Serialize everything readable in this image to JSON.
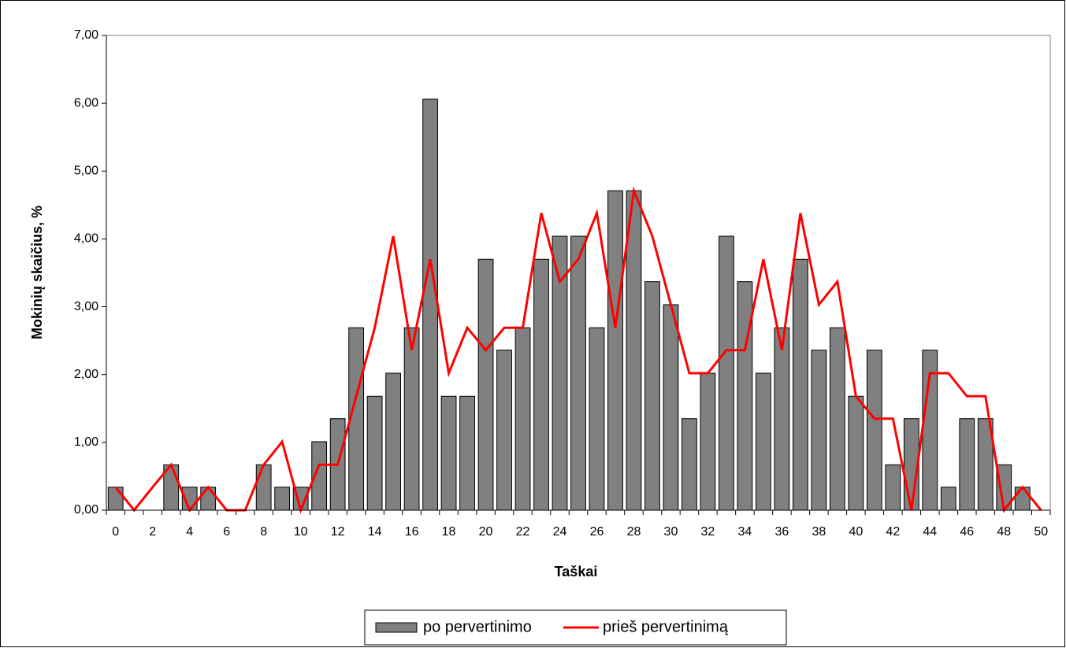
{
  "chart_data": {
    "type": "bar",
    "x_label": "Taškai",
    "y_label": "Mokinių skaičius, %",
    "categories": [
      "0",
      null,
      "2",
      null,
      "4",
      null,
      "6",
      null,
      "8",
      null,
      "10",
      null,
      "12",
      null,
      "14",
      null,
      "16",
      null,
      "18",
      null,
      "20",
      null,
      "22",
      null,
      "24",
      null,
      "26",
      null,
      "28",
      null,
      "30",
      null,
      "32",
      null,
      "34",
      null,
      "36",
      null,
      "38",
      null,
      "40",
      null,
      "42",
      null,
      "44",
      null,
      "46",
      null,
      "48",
      null,
      "50"
    ],
    "series": [
      {
        "name": "po pervertinimo",
        "type": "bar",
        "color": "#808080",
        "values": [
          0.34,
          0,
          0,
          0.67,
          0.34,
          0.34,
          0,
          0,
          0.67,
          0.34,
          0.34,
          1.01,
          1.35,
          2.69,
          1.68,
          2.02,
          2.69,
          6.06,
          1.68,
          1.68,
          3.7,
          2.36,
          2.69,
          3.7,
          4.04,
          4.04,
          2.69,
          4.71,
          4.71,
          3.37,
          3.03,
          1.35,
          2.02,
          4.04,
          3.37,
          2.02,
          2.69,
          3.7,
          2.36,
          2.69,
          1.68,
          2.36,
          0.67,
          1.35,
          2.36,
          0.34,
          1.35,
          1.35,
          0.67,
          0.34,
          0
        ]
      },
      {
        "name": "prieš pervertinimą",
        "type": "line",
        "color": "#ff0000",
        "values": [
          0.34,
          0,
          0.34,
          0.67,
          0,
          0.34,
          0,
          0,
          0.67,
          1.01,
          0,
          0.67,
          0.67,
          1.68,
          2.69,
          4.04,
          2.36,
          3.7,
          2.02,
          2.69,
          2.36,
          2.69,
          2.69,
          4.38,
          3.37,
          3.7,
          4.38,
          2.69,
          4.71,
          4.04,
          3.03,
          2.02,
          2.02,
          2.36,
          2.36,
          3.7,
          2.36,
          4.38,
          3.03,
          3.37,
          1.68,
          1.35,
          1.35,
          0,
          2.02,
          2.02,
          1.68,
          1.68,
          0,
          0.34,
          0
        ]
      }
    ],
    "ylim": [
      0,
      7
    ],
    "yticks": [
      {
        "value": 0,
        "label": "0,00"
      },
      {
        "value": 1,
        "label": "1,00"
      },
      {
        "value": 2,
        "label": "2,00"
      },
      {
        "value": 3,
        "label": "3,00"
      },
      {
        "value": 4,
        "label": "4,00"
      },
      {
        "value": 5,
        "label": "5,00"
      },
      {
        "value": 6,
        "label": "6,00"
      },
      {
        "value": 7,
        "label": "7,00"
      }
    ],
    "grid": false,
    "legend": "bottom"
  }
}
